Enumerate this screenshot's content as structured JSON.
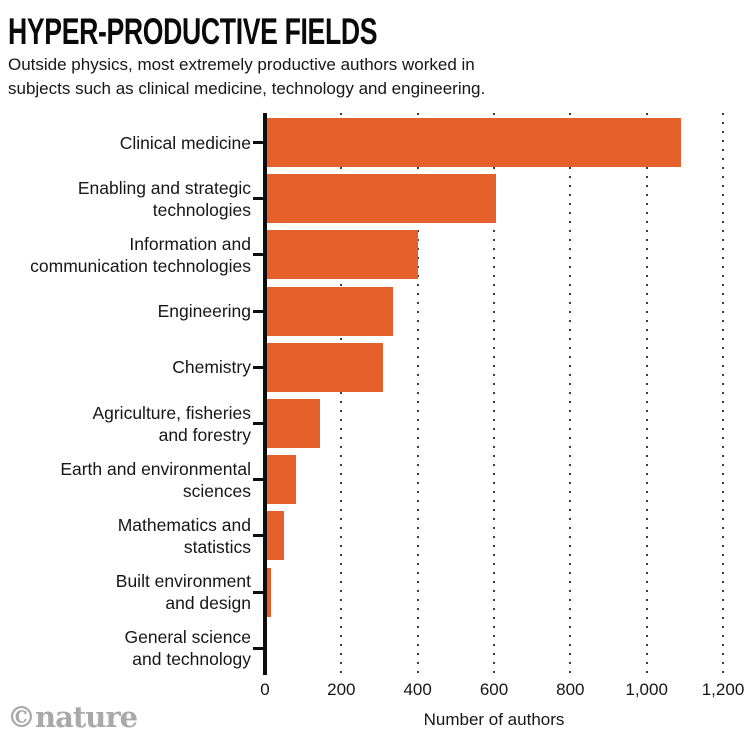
{
  "header": {
    "title": "HYPER-PRODUCTIVE FIELDS",
    "subtitle_lines": [
      "Outside physics, most extremely productive authors worked in",
      "subjects such as clinical medicine, technology and engineering."
    ]
  },
  "chart_data": {
    "type": "bar",
    "orientation": "horizontal",
    "title": "HYPER-PRODUCTIVE FIELDS",
    "categories": [
      "Clinical medicine",
      "Enabling and strategic technologies",
      "Information and communication technologies",
      "Engineering",
      "Chemistry",
      "Agriculture, fisheries and forestry",
      "Earth and environmental sciences",
      "Mathematics and statistics",
      "Built environment and design",
      "General science and technology"
    ],
    "label_lines": [
      [
        "Clinical medicine"
      ],
      [
        "Enabling and strategic",
        "technologies"
      ],
      [
        "Information and",
        "communication technologies"
      ],
      [
        "Engineering"
      ],
      [
        "Chemistry"
      ],
      [
        "Agriculture, fisheries",
        "and forestry"
      ],
      [
        "Earth and environmental",
        "sciences"
      ],
      [
        "Mathematics and",
        "statistics"
      ],
      [
        "Built environment",
        "and design"
      ],
      [
        "General science",
        "and technology"
      ]
    ],
    "values": [
      1090,
      605,
      400,
      335,
      310,
      145,
      80,
      50,
      15,
      5
    ],
    "xlabel": "Number of authors",
    "xlim": [
      0,
      1200
    ],
    "xticks": [
      0,
      200,
      400,
      600,
      800,
      1000,
      1200
    ],
    "xtick_labels": [
      "0",
      "200",
      "400",
      "600",
      "800",
      "1,000",
      "1,200"
    ],
    "bar_color": "#e5602b",
    "grid": "vertical-dotted",
    "legend": "none"
  },
  "footer": {
    "credit": "©nature"
  }
}
